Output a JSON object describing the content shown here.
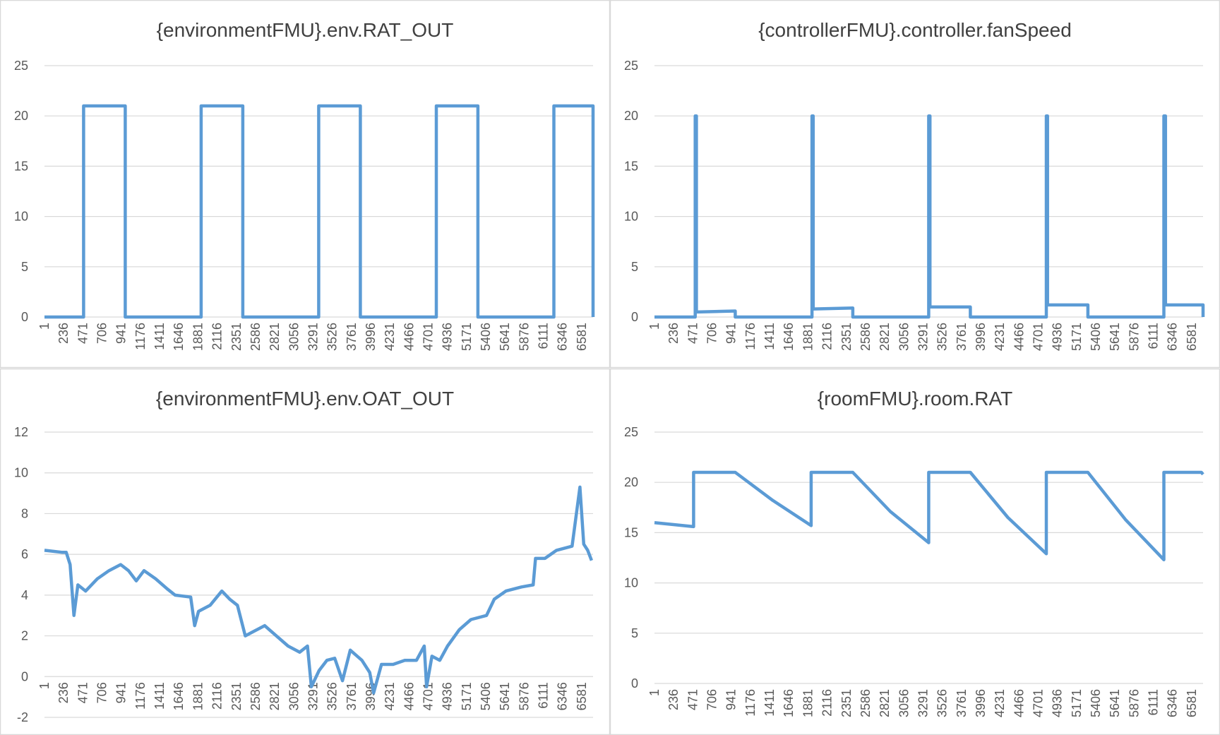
{
  "chart_data": [
    {
      "type": "line",
      "title": "{environmentFMU}.env.RAT_OUT",
      "color": "#5b9bd5",
      "grid": true,
      "x": [
        1,
        480,
        480,
        990,
        990,
        1920,
        1920,
        2430,
        2430,
        3360,
        3360,
        3870,
        3870,
        4800,
        4800,
        5310,
        5310,
        6240,
        6240,
        6720,
        6720
      ],
      "values": [
        0,
        0,
        21,
        21,
        0,
        0,
        21,
        21,
        0,
        0,
        21,
        21,
        0,
        0,
        21,
        21,
        0,
        0,
        21,
        21,
        0
      ],
      "xlim": [
        1,
        6720
      ],
      "xticks": [
        1,
        236,
        471,
        706,
        941,
        1176,
        1411,
        1646,
        1881,
        2116,
        2351,
        2586,
        2821,
        3056,
        3291,
        3526,
        3761,
        3996,
        4231,
        4466,
        4701,
        4936,
        5171,
        5406,
        5641,
        5876,
        6111,
        6346,
        6581
      ],
      "ylim": [
        0,
        25
      ],
      "yticks": [
        0,
        5,
        10,
        15,
        20,
        25
      ]
    },
    {
      "type": "line",
      "title": "{controllerFMU}.controller.fanSpeed",
      "color": "#5b9bd5",
      "grid": true,
      "x": [
        1,
        500,
        500,
        515,
        515,
        990,
        990,
        1930,
        1930,
        1945,
        1945,
        2430,
        2430,
        3360,
        3360,
        3375,
        3375,
        3870,
        3870,
        4800,
        4800,
        4815,
        4815,
        5310,
        5310,
        6240,
        6240,
        6260,
        6260,
        6720,
        6720
      ],
      "values": [
        0,
        0,
        20,
        20,
        0.5,
        0.6,
        0,
        0,
        20,
        20,
        0.8,
        0.9,
        0,
        0,
        20,
        20,
        1.0,
        1.0,
        0,
        0,
        20,
        20,
        1.2,
        1.2,
        0,
        0,
        20,
        20,
        1.2,
        1.2,
        0
      ],
      "xlim": [
        1,
        6720
      ],
      "xticks": [
        1,
        236,
        471,
        706,
        941,
        1176,
        1411,
        1646,
        1881,
        2116,
        2351,
        2586,
        2821,
        3056,
        3291,
        3526,
        3761,
        3996,
        4231,
        4466,
        4701,
        4936,
        5171,
        5406,
        5641,
        5876,
        6111,
        6346,
        6581
      ],
      "ylim": [
        0,
        25
      ],
      "yticks": [
        0,
        5,
        10,
        15,
        20,
        25
      ]
    },
    {
      "type": "line",
      "title": "{environmentFMU}.env.OAT_OUT",
      "color": "#5b9bd5",
      "grid": true,
      "x": [
        1,
        220,
        267,
        315,
        362,
        410,
        505,
        648,
        791,
        934,
        1030,
        1125,
        1220,
        1363,
        1506,
        1601,
        1792,
        1840,
        1888,
        2030,
        2173,
        2269,
        2364,
        2460,
        2555,
        2698,
        2841,
        2984,
        3127,
        3222,
        3270,
        3365,
        3460,
        3556,
        3651,
        3746,
        3889,
        3985,
        4032,
        4128,
        4271,
        4414,
        4557,
        4652,
        4681,
        4747,
        4843,
        4938,
        5081,
        5224,
        5415,
        5510,
        5653,
        5844,
        5987,
        6015,
        6130,
        6273,
        6463,
        6559,
        6606,
        6654,
        6702
      ],
      "values": [
        6.2,
        6.1,
        6.1,
        5.5,
        3,
        4.5,
        4.2,
        4.8,
        5.2,
        5.5,
        5.2,
        4.7,
        5.2,
        4.8,
        4.3,
        4.0,
        3.9,
        2.5,
        3.2,
        3.5,
        4.2,
        3.8,
        3.5,
        2.0,
        2.2,
        2.5,
        2.0,
        1.5,
        1.2,
        1.5,
        -0.5,
        0.3,
        0.8,
        0.9,
        -0.2,
        1.3,
        0.8,
        0.2,
        -0.8,
        0.6,
        0.6,
        0.8,
        0.8,
        1.5,
        -0.5,
        1.0,
        0.8,
        1.5,
        2.3,
        2.8,
        3.0,
        3.8,
        4.2,
        4.4,
        4.5,
        5.8,
        5.8,
        6.2,
        6.4,
        9.3,
        6.5,
        6.2,
        5.7
      ],
      "xlim": [
        1,
        6720
      ],
      "xticks": [
        1,
        236,
        471,
        706,
        941,
        1176,
        1411,
        1646,
        1881,
        2116,
        2351,
        2586,
        2821,
        3056,
        3291,
        3526,
        3761,
        3996,
        4231,
        4466,
        4701,
        4936,
        5171,
        5406,
        5641,
        5876,
        6111,
        6346,
        6581
      ],
      "ylim": [
        -2,
        12
      ],
      "yticks": [
        -2,
        0,
        2,
        4,
        6,
        8,
        10,
        12
      ]
    },
    {
      "type": "line",
      "title": "{roomFMU}.room.RAT",
      "color": "#5b9bd5",
      "grid": true,
      "x": [
        1,
        480,
        480,
        990,
        1450,
        1920,
        1920,
        2430,
        2890,
        3360,
        3360,
        3870,
        4330,
        4800,
        4800,
        5310,
        5770,
        6240,
        6240,
        6700,
        6720
      ],
      "values": [
        16,
        15.6,
        21,
        21,
        18.2,
        15.7,
        21,
        21,
        17.1,
        14,
        21,
        21,
        16.5,
        12.9,
        21,
        21,
        16.3,
        12.3,
        21,
        21,
        20.8
      ],
      "xlim": [
        1,
        6720
      ],
      "xticks": [
        1,
        236,
        471,
        706,
        941,
        1176,
        1411,
        1646,
        1881,
        2116,
        2351,
        2586,
        2821,
        3056,
        3291,
        3526,
        3761,
        3996,
        4231,
        4466,
        4701,
        4936,
        5171,
        5406,
        5641,
        5876,
        6111,
        6346,
        6581
      ],
      "ylim": [
        0,
        25
      ],
      "yticks": [
        0,
        5,
        10,
        15,
        20,
        25
      ]
    }
  ]
}
